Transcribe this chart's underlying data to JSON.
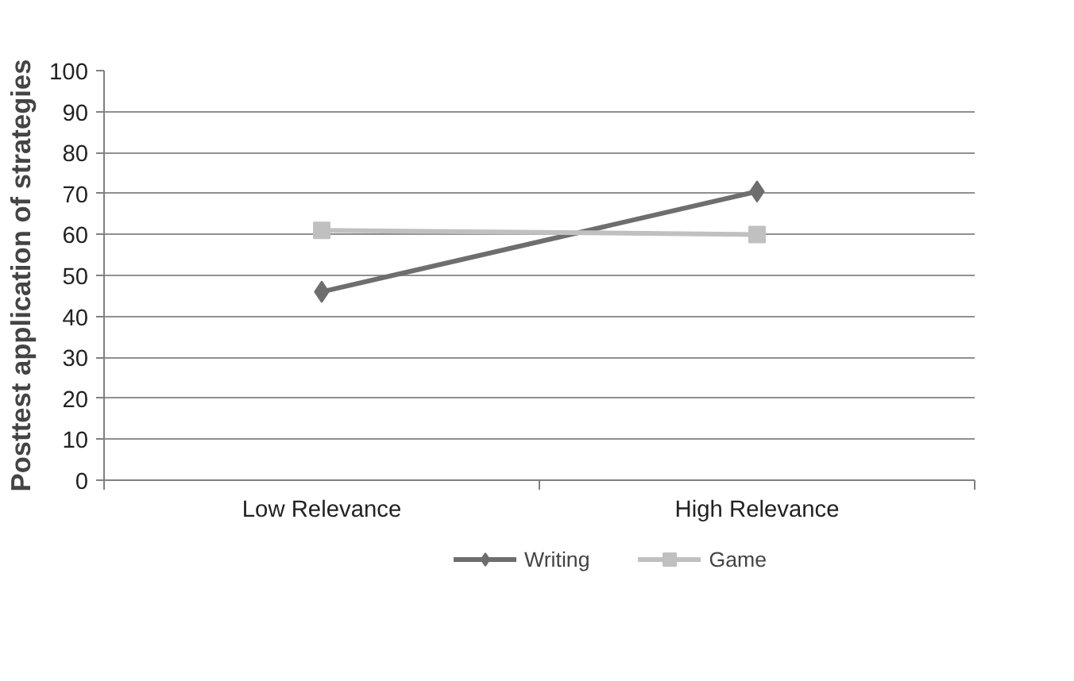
{
  "chart_data": {
    "type": "line",
    "ylabel": "Posttest application of strategies",
    "categories": [
      "Low Relevance",
      "High Relevance"
    ],
    "series": [
      {
        "name": "Writing",
        "color": "#6e6e6e",
        "values": [
          46,
          70.5
        ],
        "marker": "diamond"
      },
      {
        "name": "Game",
        "color": "#c0c0c0",
        "values": [
          61,
          60
        ],
        "marker": "square"
      }
    ],
    "ylim": [
      0,
      100
    ],
    "yticks": [
      0,
      10,
      20,
      30,
      40,
      50,
      60,
      70,
      80,
      90,
      100
    ],
    "grid": "y",
    "legend": "bottom"
  }
}
